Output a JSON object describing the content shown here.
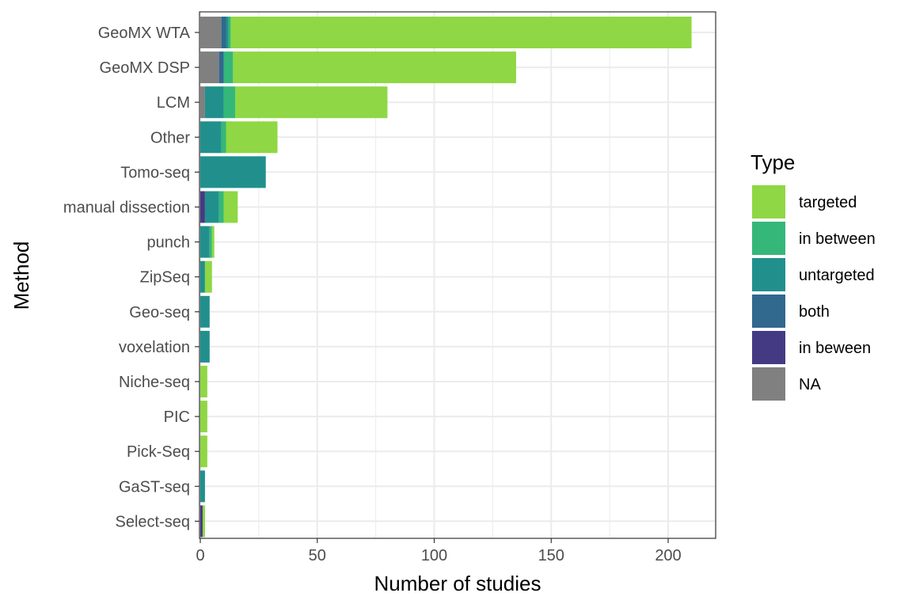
{
  "chart_data": {
    "type": "bar",
    "orientation": "horizontal",
    "stacked": true,
    "xlabel": "Number of studies",
    "ylabel": "Method",
    "xlim": [
      0,
      220
    ],
    "xticks": [
      0,
      50,
      100,
      150,
      200
    ],
    "grid": true,
    "legend": {
      "title": "Type",
      "position": "right"
    },
    "categories": [
      "GeoMX WTA",
      "GeoMX DSP",
      "LCM",
      "Other",
      "Tomo-seq",
      "manual dissection",
      "punch",
      "ZipSeq",
      "Geo-seq",
      "voxelation",
      "Niche-seq",
      "PIC",
      "Pick-Seq",
      "GaST-seq",
      "Select-seq"
    ],
    "series": [
      {
        "name": "NA",
        "color": "#808080",
        "values": [
          9,
          8,
          2,
          0,
          0,
          0,
          0,
          0,
          0,
          0,
          0,
          0,
          0,
          0,
          0
        ]
      },
      {
        "name": "in beween",
        "color": "#443A83",
        "values": [
          0,
          0,
          0,
          0,
          0,
          2,
          0,
          0,
          0,
          0,
          0,
          0,
          0,
          0,
          1
        ]
      },
      {
        "name": "both",
        "color": "#31688E",
        "values": [
          2,
          2,
          0,
          0,
          0,
          0,
          0,
          0,
          0,
          0,
          0,
          0,
          0,
          0,
          0
        ]
      },
      {
        "name": "untargeted",
        "color": "#21908D",
        "values": [
          1,
          0,
          8,
          9,
          28,
          6,
          4,
          2,
          4,
          4,
          0,
          0,
          0,
          2,
          0
        ]
      },
      {
        "name": "in between",
        "color": "#35B779",
        "values": [
          1,
          4,
          5,
          2,
          0,
          2,
          1,
          0,
          0,
          0,
          0,
          0,
          0,
          0,
          0
        ]
      },
      {
        "name": "targeted",
        "color": "#8FD744",
        "values": [
          197,
          121,
          65,
          22,
          0,
          6,
          1,
          3,
          0,
          0,
          3,
          3,
          3,
          0,
          1
        ]
      }
    ],
    "legend_order": [
      "targeted",
      "in between",
      "untargeted",
      "both",
      "in beween",
      "NA"
    ]
  }
}
